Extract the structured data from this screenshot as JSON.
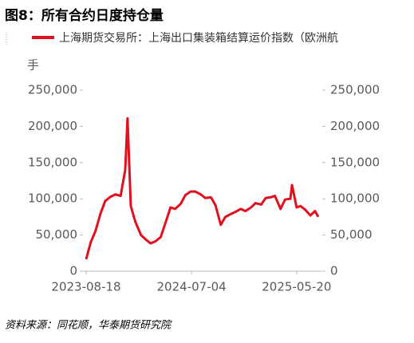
{
  "chart_data": {
    "type": "line",
    "title": "图8：所有合约日度持仓量",
    "y_unit_label": "手",
    "source": "资料来源：同花顺，华泰期货研究院",
    "x": [
      "2023-08-18",
      "2023-09-01",
      "2023-09-15",
      "2023-10-01",
      "2023-10-15",
      "2023-11-01",
      "2023-11-15",
      "2023-12-01",
      "2023-12-15",
      "2023-12-22",
      "2024-01-01",
      "2024-01-15",
      "2024-02-01",
      "2024-02-15",
      "2024-03-01",
      "2024-03-15",
      "2024-04-01",
      "2024-04-15",
      "2024-05-01",
      "2024-05-15",
      "2024-06-01",
      "2024-06-15",
      "2024-07-01",
      "2024-07-15",
      "2024-08-01",
      "2024-08-15",
      "2024-09-01",
      "2024-09-15",
      "2024-10-01",
      "2024-10-15",
      "2024-11-01",
      "2024-11-15",
      "2024-12-01",
      "2024-12-15",
      "2025-01-01",
      "2025-01-15",
      "2025-02-01",
      "2025-02-15",
      "2025-03-01",
      "2025-03-15",
      "2025-04-01",
      "2025-04-15",
      "2025-05-01",
      "2025-05-06",
      "2025-05-20",
      "2025-06-01",
      "2025-06-15",
      "2025-07-01",
      "2025-07-15",
      "2025-07-25"
    ],
    "series": [
      {
        "name": "上海期货交易所：上海出口集装箱结算运价指数（欧洲航",
        "color": "#e0101e",
        "values": [
          16500,
          40000,
          55000,
          80000,
          97000,
          103000,
          106000,
          104000,
          140000,
          211000,
          90000,
          68000,
          50000,
          44000,
          38500,
          41000,
          47000,
          66000,
          88000,
          86000,
          93000,
          105000,
          110000,
          110000,
          106000,
          101000,
          102000,
          91000,
          64000,
          75000,
          79000,
          82000,
          86000,
          83000,
          88000,
          94000,
          92000,
          101000,
          102000,
          104000,
          86000,
          99000,
          100000,
          119000,
          88000,
          90000,
          85000,
          77000,
          83000,
          75000
        ]
      }
    ],
    "xlim": [
      "2023-08-18",
      "2025-07-25"
    ],
    "xticks": [
      "2023-08-18",
      "2024-07-04",
      "2025-05-20"
    ],
    "ylim": [
      0,
      250000
    ],
    "yticks": [
      0,
      {
        "value": 50000,
        "label": "50,000"
      },
      {
        "value": 100000,
        "label": "100,000"
      },
      {
        "value": 150000,
        "label": "150,000"
      },
      {
        "value": 200000,
        "label": "200,000"
      },
      {
        "value": 250000,
        "label": "250,000"
      }
    ],
    "y2lim": [
      0,
      250000
    ],
    "y2ticks": [
      0,
      {
        "value": 50000,
        "label": "50,000"
      },
      {
        "value": 100000,
        "label": "100,000"
      },
      {
        "value": 150000,
        "label": "150,000"
      },
      {
        "value": 200000,
        "label": "200,000"
      },
      {
        "value": 250000,
        "label": "250,000"
      }
    ]
  }
}
